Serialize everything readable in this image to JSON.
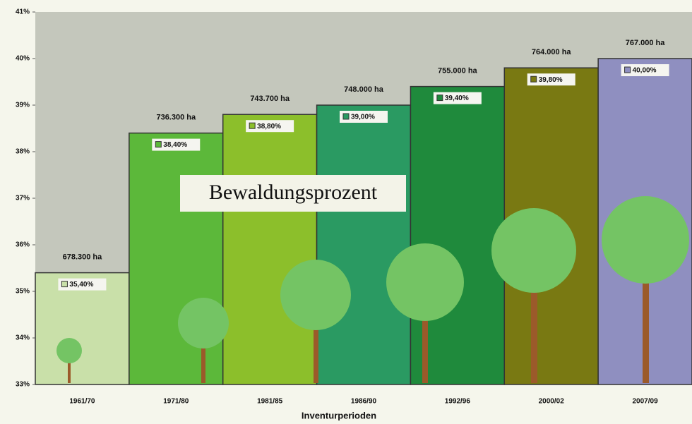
{
  "chart_data": {
    "type": "bar",
    "title": "Bewaldungsprozent",
    "x_label": "Inventurperioden",
    "categories": [
      "1961/70",
      "1971/80",
      "1981/85",
      "1986/90",
      "1992/96",
      "2000/02",
      "2007/09"
    ],
    "values": [
      35.4,
      38.4,
      38.8,
      39.0,
      39.4,
      39.8,
      40.0
    ],
    "value_labels": [
      "35,40%",
      "38,40%",
      "38,80%",
      "39,00%",
      "39,40%",
      "39,80%",
      "40,00%"
    ],
    "annotations": [
      "678.300 ha",
      "736.300 ha",
      "743.700 ha",
      "748.000 ha",
      "755.000 ha",
      "764.000 ha",
      "767.000 ha"
    ],
    "colors": [
      "#c9e0a9",
      "#5cb83a",
      "#8cbf2b",
      "#2a9a62",
      "#1f8a3c",
      "#797912",
      "#8f8fc0"
    ],
    "ylim": [
      33,
      41
    ],
    "yticks": [
      {
        "value": 33,
        "label": "33%"
      },
      {
        "value": 34,
        "label": "34%"
      },
      {
        "value": 35,
        "label": "35%"
      },
      {
        "value": 36,
        "label": "36%"
      },
      {
        "value": 37,
        "label": "37%"
      },
      {
        "value": 38,
        "label": "38%"
      },
      {
        "value": 39,
        "label": "39%"
      },
      {
        "value": 40,
        "label": "40%"
      },
      {
        "value": 41,
        "label": "41%"
      }
    ],
    "grid": false
  }
}
